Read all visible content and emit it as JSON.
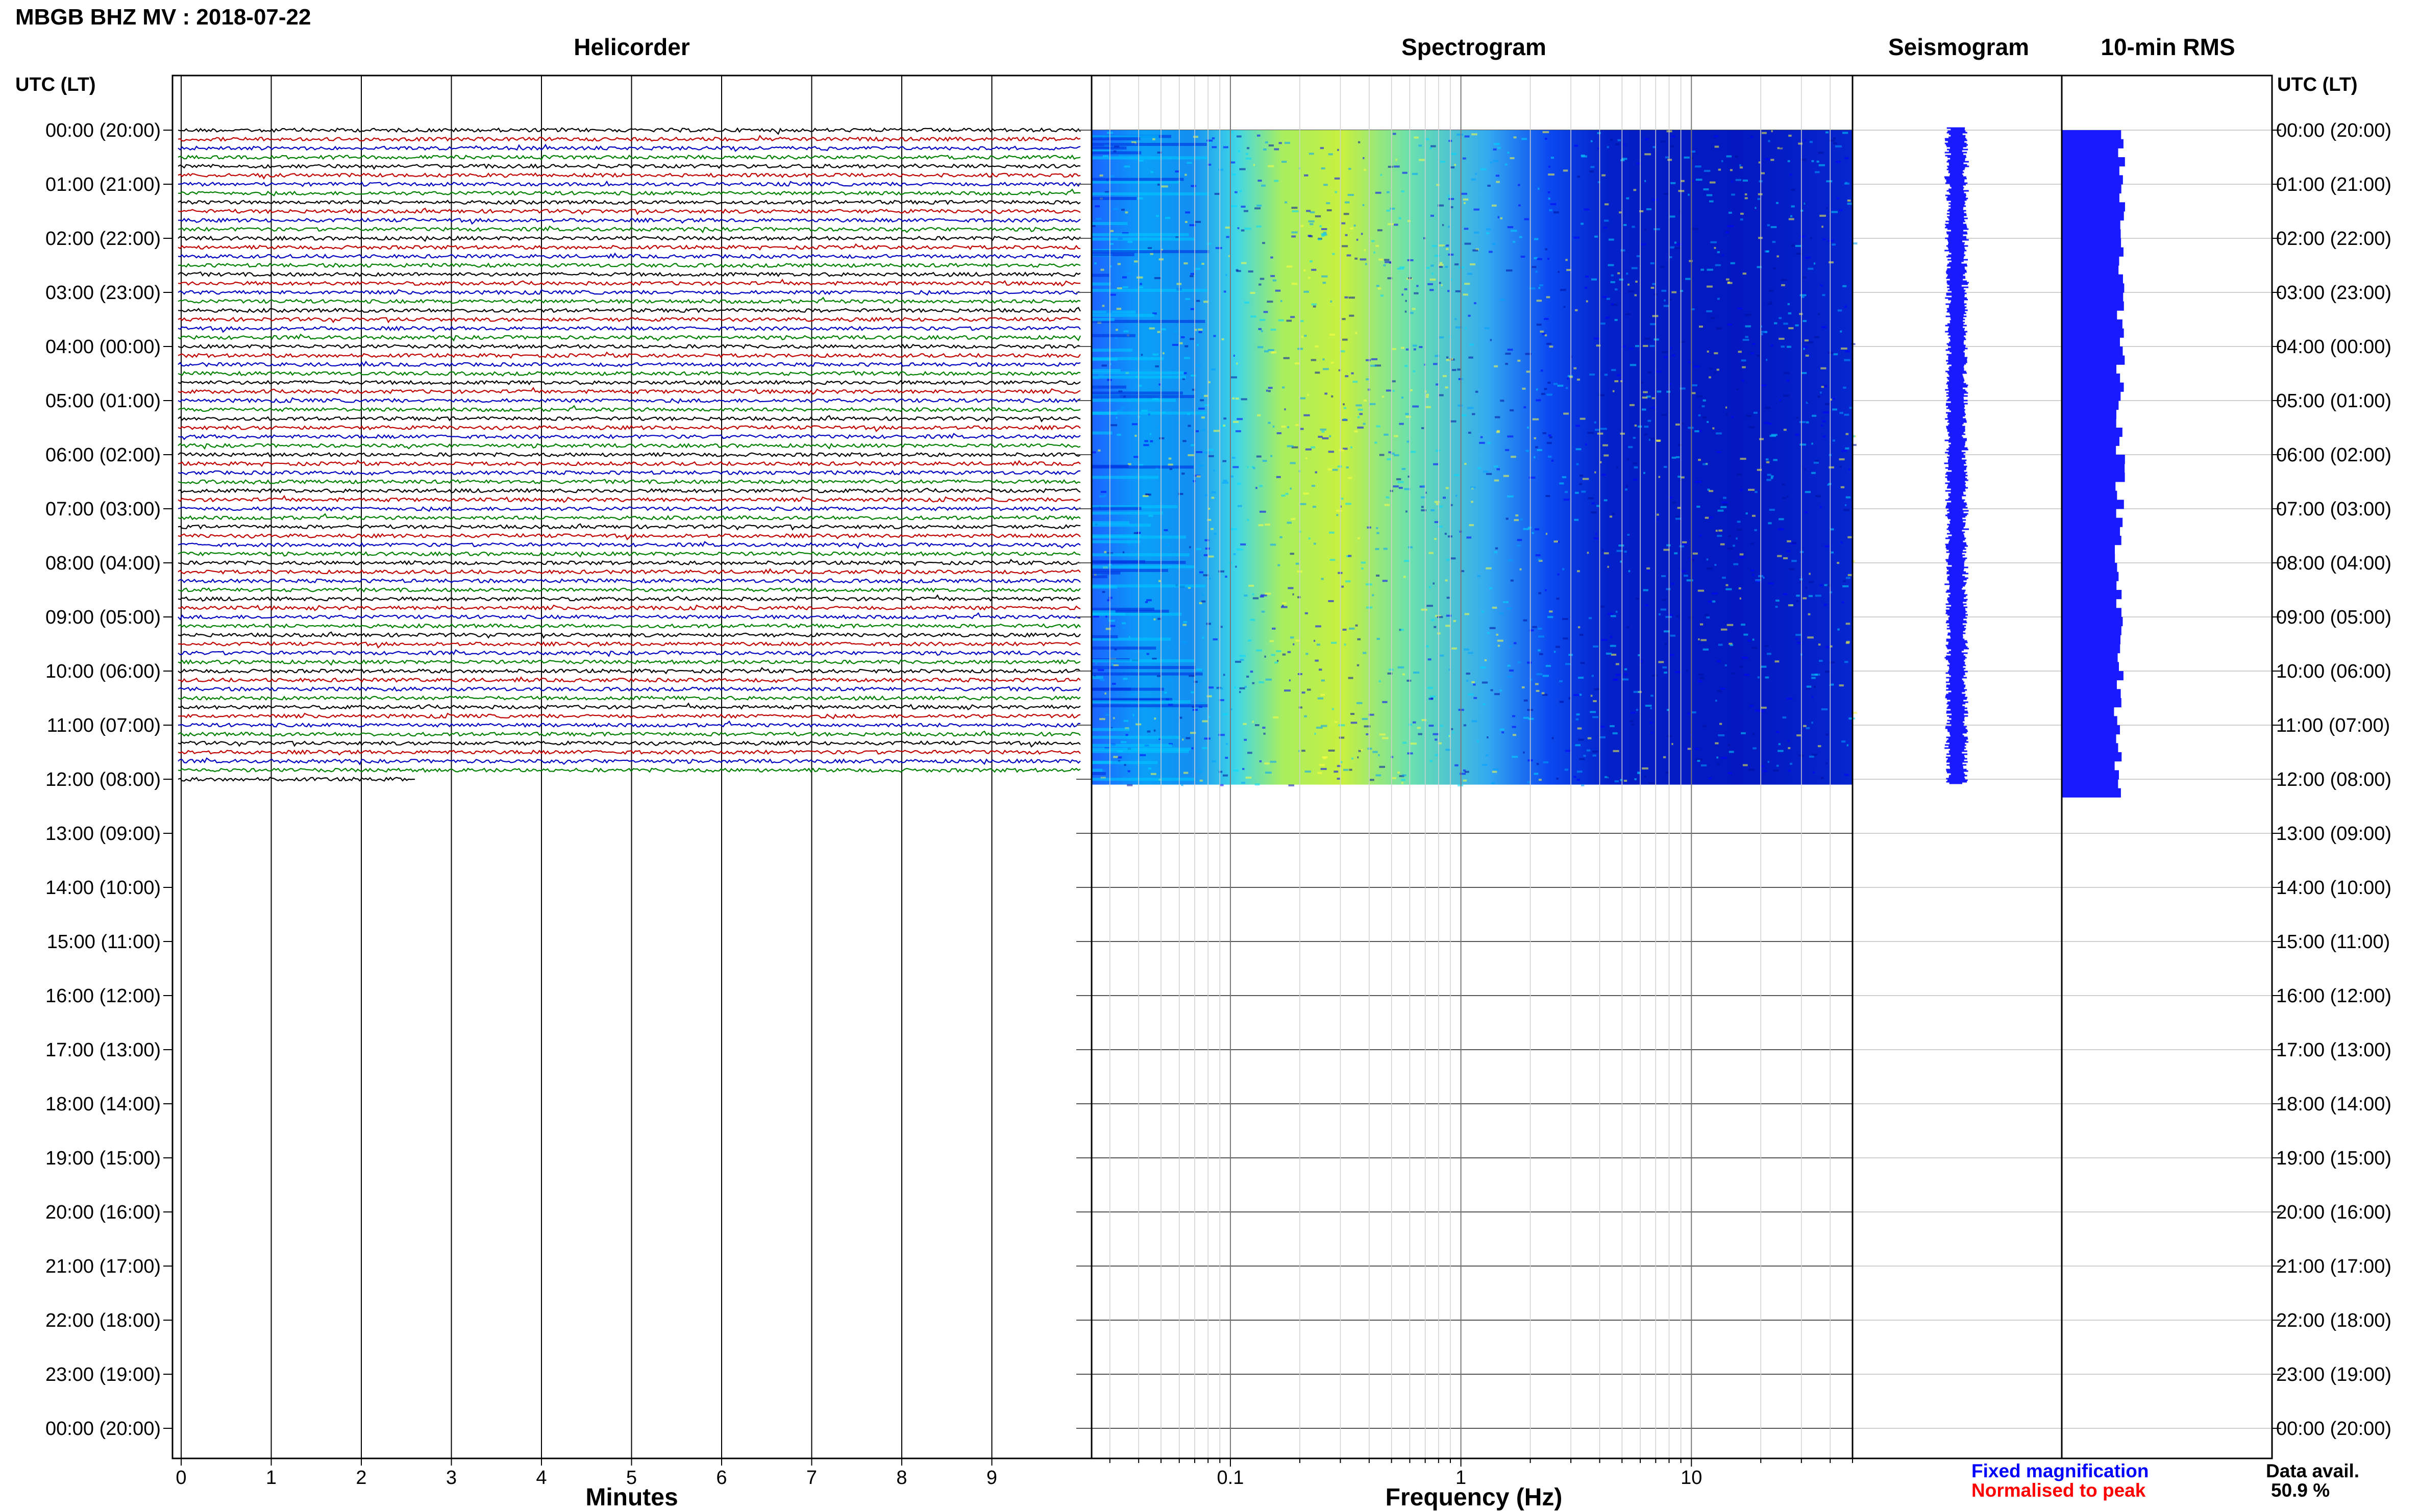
{
  "header": {
    "station_title": "MBGB BHZ MV : 2018-07-22",
    "panel_titles": [
      "Helicorder",
      "Spectrogram",
      "Seismogram",
      "10-min RMS"
    ],
    "left_axis_title": "UTC (LT)",
    "right_axis_title": "UTC (LT)"
  },
  "footer": {
    "legend_fixed": "Fixed magnification",
    "legend_normalised": "Normalised to peak",
    "data_avail_label": "Data avail.",
    "data_avail_value": "50.9 %"
  },
  "colors": {
    "trace_cycle": [
      "#000000",
      "#c00000",
      "#0000c0",
      "#008000"
    ],
    "seismogram": "#1a1aff",
    "rms": "#1a1aff",
    "legend_fixed": "#0000ff",
    "legend_normalised": "#ff0000",
    "spectrogram_colormap": [
      "#00008f",
      "#0000ff",
      "#0080ff",
      "#00ffff",
      "#80ff80",
      "#ffff00"
    ]
  },
  "chart_data": [
    {
      "type": "line",
      "panel": "Helicorder",
      "xlabel": "Minutes",
      "x_ticks": [
        "0",
        "1",
        "2",
        "3",
        "4",
        "5",
        "6",
        "7",
        "8",
        "9"
      ],
      "xlim": [
        0,
        10
      ],
      "row_labels": [
        "00:00 (20:00)",
        "01:00 (21:00)",
        "02:00 (22:00)",
        "03:00 (23:00)",
        "04:00 (00:00)",
        "05:00 (01:00)",
        "06:00 (02:00)",
        "07:00 (03:00)",
        "08:00 (04:00)",
        "09:00 (05:00)",
        "10:00 (06:00)",
        "11:00 (07:00)",
        "12:00 (08:00)",
        "13:00 (09:00)",
        "14:00 (10:00)",
        "15:00 (11:00)",
        "16:00 (12:00)",
        "17:00 (13:00)",
        "18:00 (14:00)",
        "19:00 (15:00)",
        "20:00 (16:00)",
        "21:00 (17:00)",
        "22:00 (18:00)",
        "23:00 (19:00)",
        "00:00 (20:00)"
      ],
      "lines_per_hour": 6,
      "full_lines": 72,
      "last_line_minutes": 2.6
    },
    {
      "type": "heatmap",
      "panel": "Spectrogram",
      "xlabel": "Frequency (Hz)",
      "x_scale": "log",
      "x_tick_labels": [
        "0.1",
        "1",
        "10"
      ],
      "x_tick_values": [
        0.1,
        1,
        10
      ],
      "xlim": [
        0.025,
        50
      ],
      "data_hours": 12.1
    },
    {
      "type": "bar",
      "panel": "Seismogram",
      "data_hours": 12.1
    },
    {
      "type": "bar",
      "panel": "10-min RMS",
      "data_hours": 12.2
    }
  ]
}
